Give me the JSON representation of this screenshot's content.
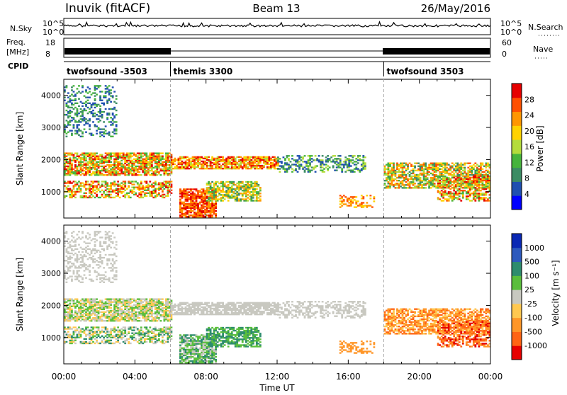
{
  "header": {
    "station": "Inuvik (fitACF)",
    "beam": "Beam 13",
    "date": "26/May/2016"
  },
  "side_labels": {
    "nsky": "N.Sky",
    "freq_a": "Freq.",
    "freq_b": "[MHz]",
    "cpid": "CPID",
    "nsearch": "N.Search",
    "nave": "Nave"
  },
  "cpid_segments": [
    {
      "label": "twofsound -3503",
      "start_hour": 0,
      "end_hour": 6
    },
    {
      "label": "themis 3300",
      "start_hour": 6,
      "end_hour": 18
    },
    {
      "label": "twofsound 3503",
      "start_hour": 18,
      "end_hour": 24
    }
  ],
  "colors": {
    "power_scale": [
      "#0000ff",
      "#1f4fb0",
      "#3c8c64",
      "#46b43c",
      "#b4dc3c",
      "#ffd200",
      "#ff9600",
      "#ff5000",
      "#e60000"
    ],
    "velocity_scale": [
      "#0a28b4",
      "#2d5abe",
      "#2d8c6e",
      "#5abe3c",
      "#c8c8c0",
      "#ffc850",
      "#ff9628",
      "#ff6414",
      "#e60000"
    ],
    "gray": "#c8c8c0"
  },
  "chart_data": [
    {
      "type": "line",
      "title": "",
      "xlabel": "",
      "ylabel": "N.Sky",
      "y_ticks": [
        "10^5",
        "10^0"
      ],
      "right_ticks": [
        "10^5",
        "10^0"
      ],
      "right_label": "N.Search",
      "x_range_hours": [
        0,
        24
      ]
    },
    {
      "type": "line",
      "ylabel": "Freq. [MHz]",
      "y_ticks": [
        "18",
        "8"
      ],
      "right_ticks": [
        "60",
        "0"
      ],
      "right_label": "Nave",
      "x_range_hours": [
        0,
        24
      ]
    },
    {
      "type": "heatmap",
      "ylabel": "Slant Range [km]",
      "y_ticks": [
        "4000",
        "3000",
        "2000",
        "1000"
      ],
      "ylim": [
        180,
        4500
      ],
      "colorbar_label": "Power [dB]",
      "colorbar_ticks": [
        "28",
        "24",
        "20",
        "16",
        "12",
        "8",
        "4"
      ],
      "x_range_hours": [
        0,
        24
      ]
    },
    {
      "type": "heatmap",
      "ylabel": "Slant Range [km]",
      "y_ticks": [
        "4000",
        "3000",
        "2000",
        "1000"
      ],
      "ylim": [
        180,
        4500
      ],
      "colorbar_label": "Velocity [m s⁻¹]",
      "colorbar_ticks": [
        "1000",
        "500",
        "100",
        "25",
        "-25",
        "-100",
        "-500",
        "-1000"
      ],
      "x_range_hours": [
        0,
        24
      ],
      "xlabel": "Time UT",
      "x_ticks": [
        "00:00",
        "04:00",
        "08:00",
        "12:00",
        "16:00",
        "20:00",
        "00:00"
      ]
    }
  ]
}
